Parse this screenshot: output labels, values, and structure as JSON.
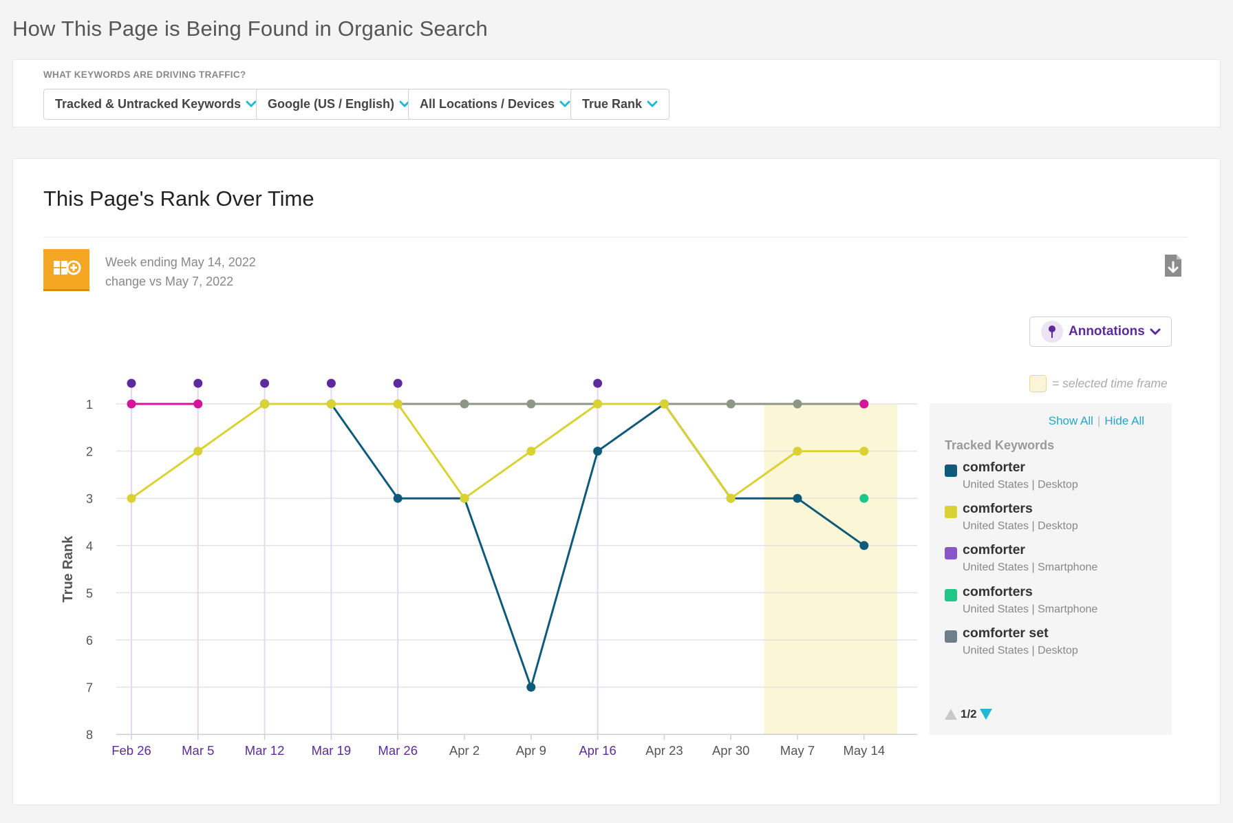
{
  "page": {
    "heading": "How This Page is Being Found in Organic Search"
  },
  "filters": {
    "caption": "WHAT KEYWORDS ARE DRIVING TRAFFIC?",
    "keywords_label": "Tracked & Untracked Keywords",
    "engine_label": "Google (US / English)",
    "locations_label": "All Locations / Devices",
    "rank_label": "True Rank"
  },
  "card": {
    "title": "This Page's Rank Over Time",
    "week_ending": "Week ending May 14, 2022",
    "change_vs": "change vs May 7, 2022",
    "annotations_label": "Annotations",
    "selected_note": "= selected time frame"
  },
  "legend": {
    "show_all": "Show All",
    "separator": "|",
    "hide_all": "Hide All",
    "heading": "Tracked Keywords",
    "items": [
      {
        "keyword": "comforter",
        "sub": "United States | Desktop",
        "color": "#0e5a7a"
      },
      {
        "keyword": "comforters",
        "sub": "United States | Desktop",
        "color": "#d9d232"
      },
      {
        "keyword": "comforter",
        "sub": "United States | Smartphone",
        "color": "#8a55c8"
      },
      {
        "keyword": "comforters",
        "sub": "United States | Smartphone",
        "color": "#1fc589"
      },
      {
        "keyword": "comforter set",
        "sub": "United States | Desktop",
        "color": "#6d7e8c"
      }
    ],
    "page": "1/2"
  },
  "chart_data": {
    "type": "line",
    "ylabel": "True Rank",
    "y_inverted": true,
    "ylim": [
      1,
      8
    ],
    "yticks": [
      1,
      2,
      3,
      4,
      5,
      6,
      7,
      8
    ],
    "categories": [
      "Feb 26",
      "Mar 5",
      "Mar 12",
      "Mar 19",
      "Mar 26",
      "Apr 2",
      "Apr 9",
      "Apr 16",
      "Apr 23",
      "Apr 30",
      "May 7",
      "May 14"
    ],
    "annotated_weeks": [
      "Feb 26",
      "Mar 5",
      "Mar 12",
      "Mar 19",
      "Mar 26",
      "Apr 16"
    ],
    "selected_range": [
      "May 7",
      "May 14"
    ],
    "series": [
      {
        "name": "comforter set",
        "device": "United States | Desktop",
        "color": "#8e9686",
        "values": [
          null,
          null,
          1,
          1,
          1,
          1,
          1,
          1,
          1,
          1,
          1,
          1
        ]
      },
      {
        "name": "comforter",
        "device": "United States | Smartphone",
        "color": "#d4149a",
        "values": [
          1,
          1,
          null,
          null,
          null,
          null,
          null,
          null,
          null,
          null,
          null,
          1
        ]
      },
      {
        "name": "comforters",
        "device": "United States | Smartphone",
        "color": "#1fc589",
        "values": [
          null,
          null,
          null,
          null,
          null,
          null,
          null,
          null,
          null,
          null,
          null,
          3
        ]
      },
      {
        "name": "comforter",
        "device": "United States | Desktop",
        "color": "#0e5a7a",
        "values": [
          null,
          null,
          1,
          1,
          3,
          3,
          7,
          2,
          1,
          3,
          3,
          4
        ]
      },
      {
        "name": "comforters",
        "device": "United States | Desktop",
        "color": "#d9d232",
        "values": [
          3,
          2,
          1,
          1,
          1,
          3,
          2,
          1,
          1,
          3,
          2,
          2
        ]
      }
    ]
  }
}
